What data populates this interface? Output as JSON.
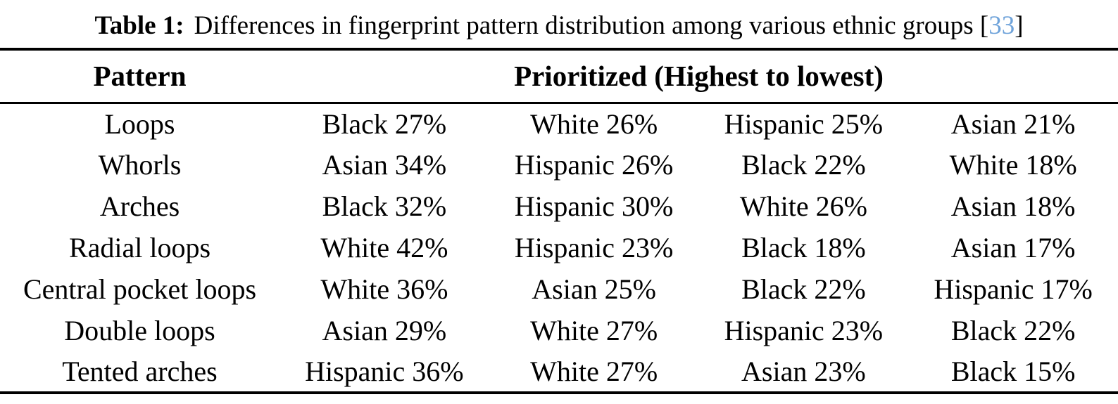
{
  "caption": {
    "label": "Table 1:",
    "text": "Differences in fingerprint pattern distribution among various ethnic groups",
    "citation": {
      "open": "[",
      "number": "33",
      "close": "]"
    }
  },
  "colors": {
    "text": "#000000",
    "background": "#FFFFFF",
    "rule": "#000000",
    "citation_blue": "#6FA3DA"
  },
  "table": {
    "header": {
      "pattern": "Pattern",
      "prioritized": "Prioritized (Highest to lowest)"
    },
    "rows": [
      {
        "pattern": "Loops",
        "values": [
          "Black 27%",
          "White 26%",
          "Hispanic 25%",
          "Asian 21%"
        ]
      },
      {
        "pattern": "Whorls",
        "values": [
          "Asian 34%",
          "Hispanic 26%",
          "Black 22%",
          "White 18%"
        ]
      },
      {
        "pattern": "Arches",
        "values": [
          "Black 32%",
          "Hispanic 30%",
          "White 26%",
          "Asian 18%"
        ]
      },
      {
        "pattern": "Radial loops",
        "values": [
          "White 42%",
          "Hispanic 23%",
          "Black 18%",
          "Asian 17%"
        ]
      },
      {
        "pattern": "Central pocket loops",
        "values": [
          "White 36%",
          "Asian 25%",
          "Black 22%",
          "Hispanic 17%"
        ]
      },
      {
        "pattern": "Double loops",
        "values": [
          "Asian 29%",
          "White 27%",
          "Hispanic 23%",
          "Black 22%"
        ]
      },
      {
        "pattern": "Tented arches",
        "values": [
          "Hispanic 36%",
          "White 27%",
          "Asian 23%",
          "Black 15%"
        ]
      }
    ]
  }
}
